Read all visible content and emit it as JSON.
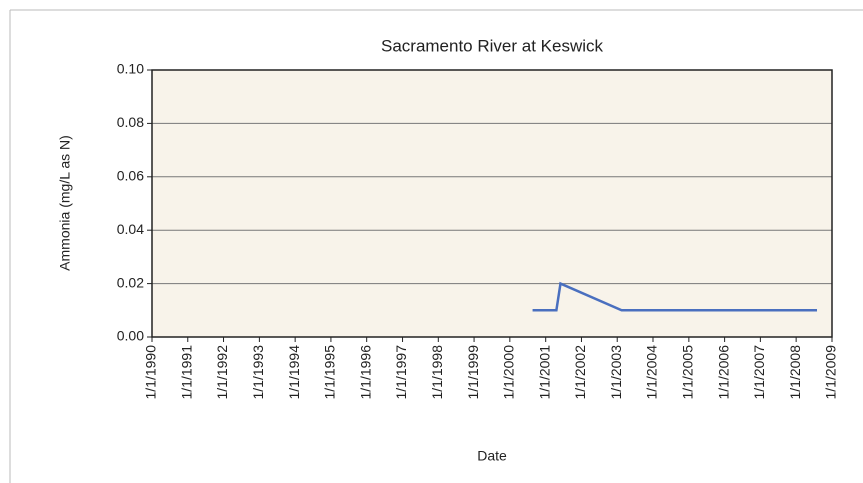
{
  "chart_data": {
    "type": "line",
    "title": "Sacramento River at Keswick",
    "x_label": "Date",
    "y_label": "Ammonia (mg/L as N)",
    "series": [
      {
        "name": "Ammonia",
        "color": "#4a6fbf",
        "x": [
          "2000-08-20",
          "2001-04-20",
          "2001-06-01",
          "2003-02-15",
          "2008-08-01"
        ],
        "values": [
          0.01,
          0.01,
          0.02,
          0.01,
          0.01
        ]
      }
    ],
    "xlim": [
      "1990-01-01",
      "2009-01-01"
    ],
    "xticks": [
      {
        "value": "1990-01-01",
        "label": "1/1/1990"
      },
      {
        "value": "1991-01-01",
        "label": "1/1/1991"
      },
      {
        "value": "1992-01-01",
        "label": "1/1/1992"
      },
      {
        "value": "1993-01-01",
        "label": "1/1/1993"
      },
      {
        "value": "1994-01-01",
        "label": "1/1/1994"
      },
      {
        "value": "1995-01-01",
        "label": "1/1/1995"
      },
      {
        "value": "1996-01-01",
        "label": "1/1/1996"
      },
      {
        "value": "1997-01-01",
        "label": "1/1/1997"
      },
      {
        "value": "1998-01-01",
        "label": "1/1/1998"
      },
      {
        "value": "1999-01-01",
        "label": "1/1/1999"
      },
      {
        "value": "2000-01-01",
        "label": "1/1/2000"
      },
      {
        "value": "2001-01-01",
        "label": "1/1/2001"
      },
      {
        "value": "2002-01-01",
        "label": "1/1/2002"
      },
      {
        "value": "2003-01-01",
        "label": "1/1/2003"
      },
      {
        "value": "2004-01-01",
        "label": "1/1/2004"
      },
      {
        "value": "2005-01-01",
        "label": "1/1/2005"
      },
      {
        "value": "2006-01-01",
        "label": "1/1/2006"
      },
      {
        "value": "2007-01-01",
        "label": "1/1/2007"
      },
      {
        "value": "2008-01-01",
        "label": "1/1/2008"
      },
      {
        "value": "2009-01-01",
        "label": "1/1/2009"
      }
    ],
    "ylim": [
      0,
      0.1
    ],
    "yticks": [
      {
        "value": 0,
        "label": "0.00"
      },
      {
        "value": 0.02,
        "label": "0.02"
      },
      {
        "value": 0.04,
        "label": "0.04"
      },
      {
        "value": 0.06,
        "label": "0.06"
      },
      {
        "value": 0.08,
        "label": "0.08"
      },
      {
        "value": 0.1,
        "label": "0.10"
      }
    ],
    "grid": true
  }
}
